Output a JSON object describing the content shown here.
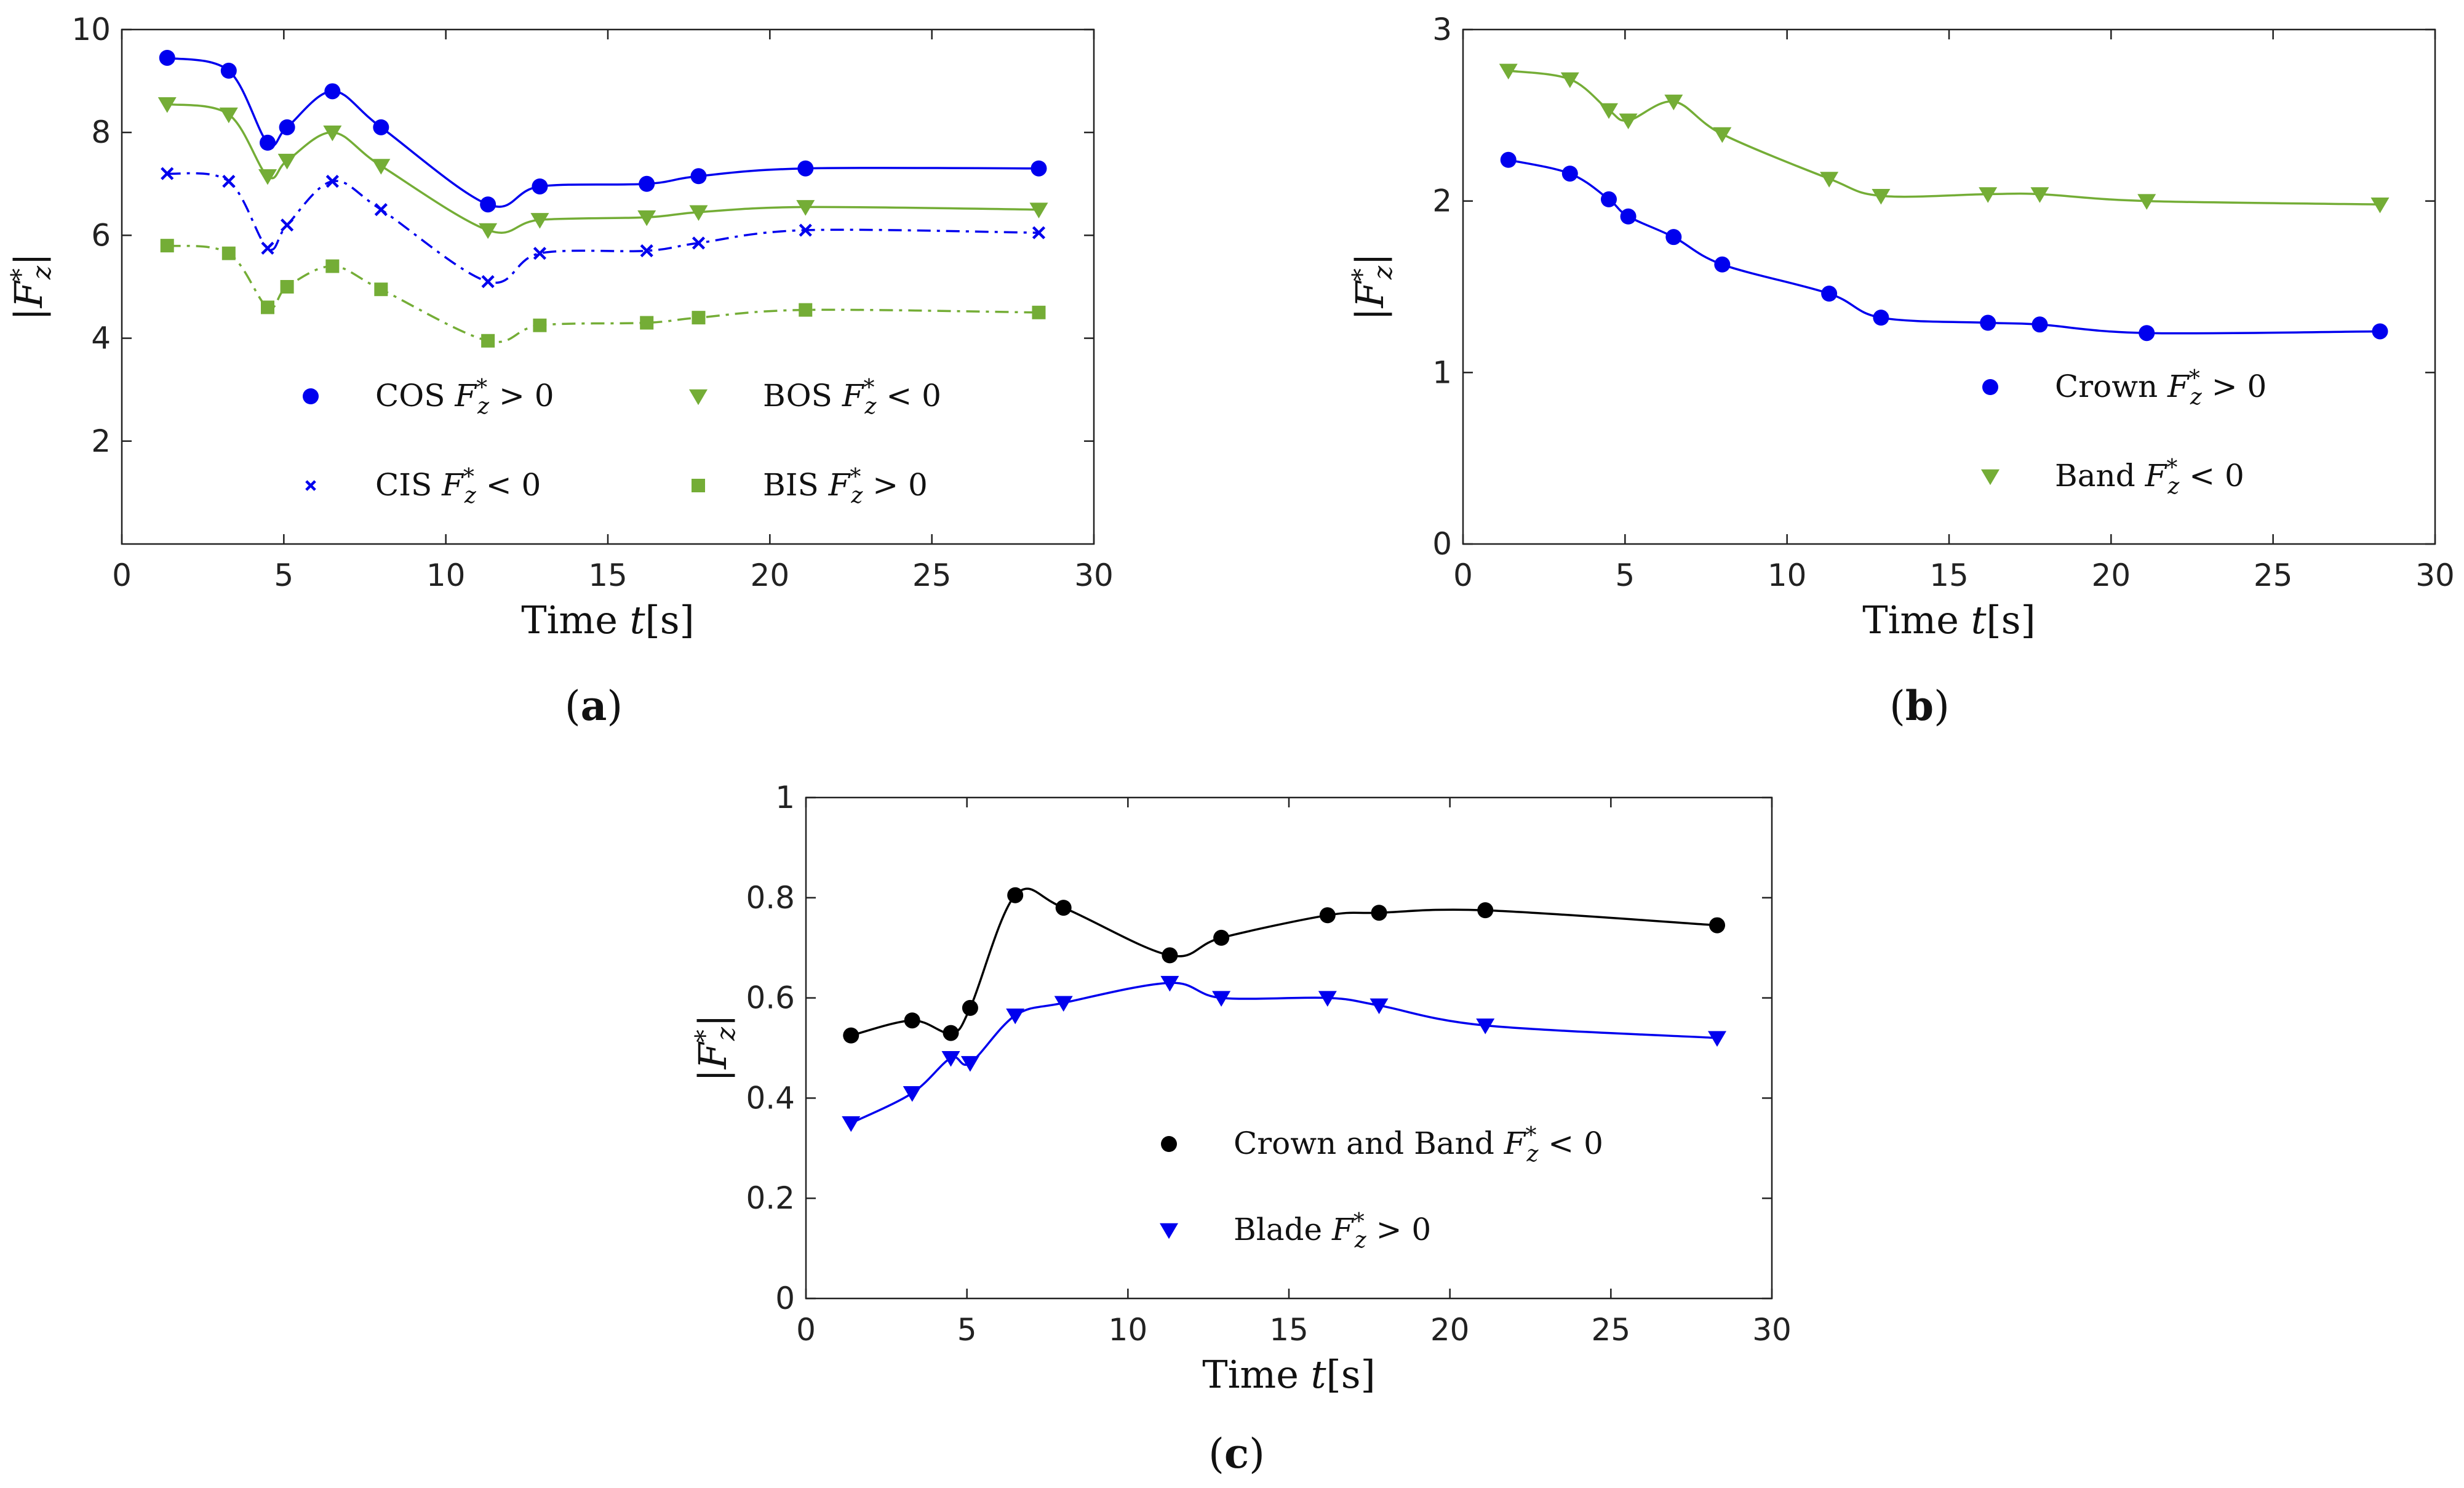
{
  "chart_data": [
    {
      "id": "a",
      "type": "line",
      "caption": "a",
      "xlabel": {
        "prefix": "Time ",
        "var": "t",
        "unit": "[s]"
      },
      "ylabel": "|F*z|",
      "xlim": [
        0,
        30
      ],
      "ylim": [
        0,
        10
      ],
      "xticks": [
        0,
        5,
        10,
        15,
        20,
        25,
        30
      ],
      "yticks": [
        2,
        4,
        6,
        8,
        10
      ],
      "legend_columns": 2,
      "series": [
        {
          "name": "COS",
          "sign": ">",
          "color": "#0000ee",
          "marker": "circle",
          "dash": "solid",
          "x": [
            1.4,
            3.3,
            4.5,
            5.1,
            6.5,
            8.0,
            11.3,
            12.9,
            16.2,
            17.8,
            21.1,
            28.3
          ],
          "y": [
            9.45,
            9.2,
            7.8,
            8.1,
            8.8,
            8.1,
            6.6,
            6.95,
            7.0,
            7.15,
            7.3,
            7.3
          ]
        },
        {
          "name": "BOS",
          "sign": "<",
          "color": "#74ad36",
          "marker": "triangle-down",
          "dash": "solid",
          "x": [
            1.4,
            3.3,
            4.5,
            5.1,
            6.5,
            8.0,
            11.3,
            12.9,
            16.2,
            17.8,
            21.1,
            28.3
          ],
          "y": [
            8.55,
            8.35,
            7.15,
            7.45,
            8.0,
            7.35,
            6.1,
            6.3,
            6.35,
            6.45,
            6.55,
            6.5
          ]
        },
        {
          "name": "CIS",
          "sign": "<",
          "color": "#0000ee",
          "marker": "x",
          "dash": "dashdot",
          "x": [
            1.4,
            3.3,
            4.5,
            5.1,
            6.5,
            8.0,
            11.3,
            12.9,
            16.2,
            17.8,
            21.1,
            28.3
          ],
          "y": [
            7.2,
            7.05,
            5.75,
            6.2,
            7.05,
            6.5,
            5.1,
            5.65,
            5.7,
            5.85,
            6.1,
            6.05
          ]
        },
        {
          "name": "BIS",
          "sign": ">",
          "color": "#74ad36",
          "marker": "square",
          "dash": "dashdot",
          "x": [
            1.4,
            3.3,
            4.5,
            5.1,
            6.5,
            8.0,
            11.3,
            12.9,
            16.2,
            17.8,
            21.1,
            28.3
          ],
          "y": [
            5.8,
            5.65,
            4.6,
            5.0,
            5.4,
            4.95,
            3.95,
            4.25,
            4.3,
            4.4,
            4.55,
            4.5
          ]
        }
      ]
    },
    {
      "id": "b",
      "type": "line",
      "caption": "b",
      "xlabel": {
        "prefix": "Time ",
        "var": "t",
        "unit": "[s]"
      },
      "ylabel": "|F*z|",
      "xlim": [
        0,
        30
      ],
      "ylim": [
        0,
        3
      ],
      "xticks": [
        0,
        5,
        10,
        15,
        20,
        25,
        30
      ],
      "yticks": [
        0,
        1,
        2,
        3
      ],
      "legend_columns": 1,
      "series": [
        {
          "name": "Crown",
          "sign": ">",
          "color": "#0000ee",
          "marker": "circle",
          "dash": "solid",
          "x": [
            1.4,
            3.3,
            4.5,
            5.1,
            6.5,
            8.0,
            11.3,
            12.9,
            16.2,
            17.8,
            21.1,
            28.3
          ],
          "y": [
            2.24,
            2.16,
            2.01,
            1.91,
            1.79,
            1.63,
            1.46,
            1.32,
            1.29,
            1.28,
            1.23,
            1.24
          ]
        },
        {
          "name": "Band",
          "sign": "<",
          "color": "#74ad36",
          "marker": "triangle-down",
          "dash": "solid",
          "x": [
            1.4,
            3.3,
            4.5,
            5.1,
            6.5,
            8.0,
            11.3,
            12.9,
            16.2,
            17.8,
            21.1,
            28.3
          ],
          "y": [
            2.76,
            2.71,
            2.53,
            2.47,
            2.58,
            2.39,
            2.13,
            2.03,
            2.04,
            2.04,
            2.0,
            1.98
          ]
        }
      ]
    },
    {
      "id": "c",
      "type": "line",
      "caption": "c",
      "xlabel": {
        "prefix": "Time ",
        "var": "t",
        "unit": "[s]"
      },
      "ylabel": "|F*z|",
      "xlim": [
        0,
        30
      ],
      "ylim": [
        0,
        1
      ],
      "xticks": [
        0,
        5,
        10,
        15,
        20,
        25,
        30
      ],
      "yticks": [
        0,
        0.2,
        0.4,
        0.6,
        0.8,
        1
      ],
      "legend_columns": 1,
      "series": [
        {
          "name": "Crown and Band",
          "sign": "<",
          "color": "#000000",
          "marker": "circle",
          "dash": "solid",
          "x": [
            1.4,
            3.3,
            4.5,
            5.1,
            6.5,
            8.0,
            11.3,
            12.9,
            16.2,
            17.8,
            21.1,
            28.3
          ],
          "y": [
            0.525,
            0.555,
            0.53,
            0.58,
            0.805,
            0.78,
            0.685,
            0.72,
            0.765,
            0.77,
            0.775,
            0.745
          ]
        },
        {
          "name": "Blade",
          "sign": ">",
          "color": "#0000ee",
          "marker": "triangle-down",
          "dash": "solid",
          "x": [
            1.4,
            3.3,
            4.5,
            5.1,
            6.5,
            8.0,
            11.3,
            12.9,
            16.2,
            17.8,
            21.1,
            28.3
          ],
          "y": [
            0.35,
            0.41,
            0.48,
            0.47,
            0.565,
            0.59,
            0.63,
            0.6,
            0.6,
            0.585,
            0.545,
            0.52
          ]
        }
      ]
    }
  ]
}
